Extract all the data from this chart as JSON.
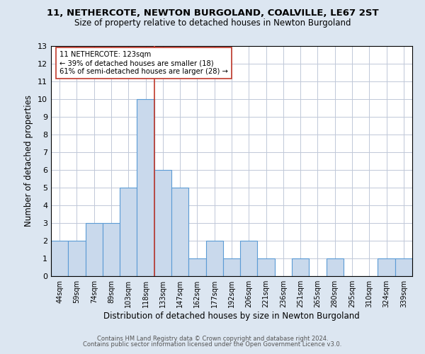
{
  "title_line1": "11, NETHERCOTE, NEWTON BURGOLAND, COALVILLE, LE67 2ST",
  "title_line2": "Size of property relative to detached houses in Newton Burgoland",
  "xlabel": "Distribution of detached houses by size in Newton Burgoland",
  "ylabel": "Number of detached properties",
  "footer_line1": "Contains HM Land Registry data © Crown copyright and database right 2024.",
  "footer_line2": "Contains public sector information licensed under the Open Government Licence v3.0.",
  "categories": [
    "44sqm",
    "59sqm",
    "74sqm",
    "89sqm",
    "103sqm",
    "118sqm",
    "133sqm",
    "147sqm",
    "162sqm",
    "177sqm",
    "192sqm",
    "206sqm",
    "221sqm",
    "236sqm",
    "251sqm",
    "265sqm",
    "280sqm",
    "295sqm",
    "310sqm",
    "324sqm",
    "339sqm"
  ],
  "values": [
    2,
    2,
    3,
    3,
    5,
    10,
    6,
    5,
    1,
    2,
    1,
    2,
    1,
    0,
    1,
    0,
    1,
    0,
    0,
    1,
    1
  ],
  "bar_color": "#c9d9ec",
  "bar_edge_color": "#5b9bd5",
  "background_color": "#dce6f1",
  "plot_bg_color": "#ffffff",
  "grid_color": "#c0c8d8",
  "vline_x": 5.5,
  "vline_color": "#c0392b",
  "annotation_text": "11 NETHERCOTE: 123sqm\n← 39% of detached houses are smaller (18)\n61% of semi-detached houses are larger (28) →",
  "annotation_box_color": "#ffffff",
  "annotation_box_edge": "#c0392b",
  "ylim": [
    0,
    13
  ],
  "yticks": [
    0,
    1,
    2,
    3,
    4,
    5,
    6,
    7,
    8,
    9,
    10,
    11,
    12,
    13
  ]
}
